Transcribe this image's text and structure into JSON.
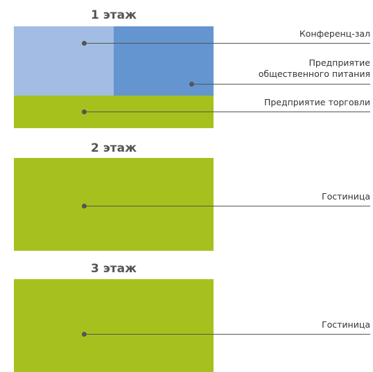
{
  "colors": {
    "conference": "#a2bce4",
    "catering": "#6495d0",
    "green": "#a6c11d",
    "line": "#555555",
    "text": "#333333",
    "heading": "#555555"
  },
  "floor1": {
    "title": "1 этаж",
    "labels": {
      "conference": "Конференц-зал",
      "catering_line1": "Предприятие",
      "catering_line2": "общественного питания",
      "trade": "Предприятие торговли"
    }
  },
  "floor2": {
    "title": "2 этаж",
    "labels": {
      "hotel": "Гостиница"
    }
  },
  "floor3": {
    "title": "3 этаж",
    "labels": {
      "hotel": "Гостиница"
    }
  }
}
